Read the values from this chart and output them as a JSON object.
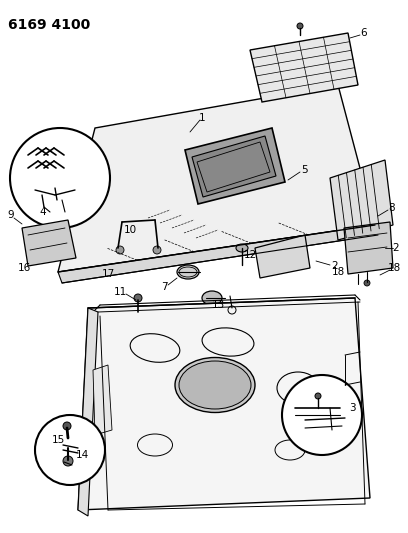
{
  "title": "6169 4100",
  "bg_color": "#ffffff",
  "title_color": "#000000",
  "title_fontsize": 10,
  "title_fontweight": "bold",
  "line_color": "#000000",
  "text_color": "#000000",
  "label_fontsize": 7.5,
  "fig_width": 4.08,
  "fig_height": 5.33,
  "dpi": 100
}
